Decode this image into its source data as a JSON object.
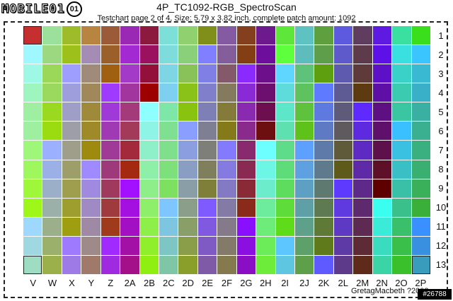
{
  "logo": {
    "text": "MOBILE01",
    "mark": "01"
  },
  "header": {
    "title": "4P_TC1092-RGB_SpectroScan",
    "subtitle": "Testchart page 2 of 4, Size: 5.79 x 3.82 inch, complete patch amount: 1092"
  },
  "columns": [
    "V",
    "W",
    "X",
    "Y",
    "Z",
    "2A",
    "2B",
    "2C",
    "2D",
    "2E",
    "2F",
    "2G",
    "2H",
    "2I",
    "2J",
    "2K",
    "2L",
    "2M",
    "2N",
    "2O",
    "2P"
  ],
  "rows": [
    "1",
    "2",
    "3",
    "4",
    "5",
    "6",
    "7",
    "8",
    "9",
    "10",
    "11",
    "12",
    "13"
  ],
  "marked_patches": [
    "V1",
    "V13",
    "2P13"
  ],
  "patches": [
    [
      "#c62f2f",
      "#9be09b",
      "#9ebc2a",
      "#b7853f",
      "#9b5b38",
      "#9a2ab5",
      "#8c1a3e",
      "#7de0d8",
      "#8fd06f",
      "#7f8f1a",
      "#845ba2",
      "#843f1f",
      "#6d1a8f",
      "#5ee63a",
      "#5ec2c2",
      "#5e9f3e",
      "#5e5adf",
      "#5e3d5f",
      "#5e1ae0",
      "#3ae0a0",
      "#3ade1a"
    ],
    [
      "#9ff7ff",
      "#9bd87f",
      "#9ec01a",
      "#a58cb5",
      "#9b5f2a",
      "#a329d2",
      "#9c1060",
      "#7edcdc",
      "#8ad07a",
      "#7f7fff",
      "#845e9a",
      "#843e14",
      "#6d0f9c",
      "#5eff3c",
      "#5ebcbc",
      "#5e9e4a",
      "#5e5acc",
      "#5e3b4a",
      "#5e10e8",
      "#3adfe0",
      "#3ac5ff"
    ],
    [
      "#9ff7e6",
      "#9bd85a",
      "#9e9eff",
      "#a08a7a",
      "#a06010",
      "#a33ac8",
      "#92103a",
      "#7ed6e4",
      "#8ac25a",
      "#7f7fe6",
      "#845a6a",
      "#8a2aff",
      "#6d0f8a",
      "#5ed6ff",
      "#5ec27a",
      "#5e9f10",
      "#5e5ab0",
      "#5e3a3a",
      "#5e10c6",
      "#3ad2c8",
      "#3ab9d2"
    ],
    [
      "#9ff5c0",
      "#9bd85e",
      "#9e9edc",
      "#a0885a",
      "#9f3aff",
      "#a3369e",
      "#9c0000",
      "#7ed0f0",
      "#8ac21a",
      "#7f7fcc",
      "#847a5e",
      "#8a2ad6",
      "#6d0f6e",
      "#5edcdc",
      "#5ec25e",
      "#5e7aff",
      "#5e5a94",
      "#5e3a10",
      "#5e10a6",
      "#3acbb0",
      "#3ab0c8"
    ],
    [
      "#9fefa2",
      "#9bd820",
      "#9e9ec6",
      "#9f8a3a",
      "#9f3ad8",
      "#a33a7a",
      "#8effff",
      "#7ee6a6",
      "#8ac210",
      "#7f7fb8",
      "#847a3a",
      "#8a2ab0",
      "#6d0f4e",
      "#5ee6c8",
      "#5ec23e",
      "#5e7ae0",
      "#5e5a7a",
      "#5e2aff",
      "#5e1082",
      "#3ac6a0",
      "#3ab0a2"
    ],
    [
      "#9fefa0",
      "#9bdc10",
      "#9e9ea8",
      "#9f8a2a",
      "#9f3ab4",
      "#a33a5a",
      "#8ef5e6",
      "#7ee090",
      "#8a9eff",
      "#7f7f94",
      "#847a1a",
      "#8a2a8c",
      "#6d0f10",
      "#5ee0b0",
      "#5ec21a",
      "#5e7ac4",
      "#5e5a5e",
      "#5e2ae0",
      "#5e106a",
      "#3ac0ff",
      "#3ab090"
    ],
    [
      "#9ff77a",
      "#9bb0ff",
      "#9e9e8a",
      "#9f8a10",
      "#9f3a96",
      "#a32a3a",
      "#8ef0c8",
      "#7ee08a",
      "#8a9ee0",
      "#7f7f7a",
      "#847aff",
      "#8a2a6e",
      "#6dffff",
      "#5edc8a",
      "#5ea0ff",
      "#5e7aa8",
      "#5e5a3a",
      "#5e2ac4",
      "#5e104a",
      "#3ac0e0",
      "#3ab080"
    ],
    [
      "#9ff75e",
      "#9bb0e6",
      "#9e9e6a",
      "#9f8aff",
      "#9f3a7a",
      "#a32a10",
      "#8eefa8",
      "#7ee07a",
      "#8a9ec4",
      "#7f7f5e",
      "#847ae0",
      "#8a2a52",
      "#6df5e6",
      "#5edc7a",
      "#5ea0e0",
      "#5e7a8c",
      "#5e5a1a",
      "#5e2aa6",
      "#5e1028",
      "#3ac0c4",
      "#3ab070"
    ],
    [
      "#9ff73a",
      "#9bb0c8",
      "#9e9e4e",
      "#9f8ae0",
      "#9f3a5e",
      "#a310ff",
      "#8eef8a",
      "#7ee060",
      "#8a9ea8",
      "#7f7f3a",
      "#847ac4",
      "#8a2a36",
      "#6deccc",
      "#5edc5e",
      "#5ea0c4",
      "#5e7a70",
      "#5e3aff",
      "#5e2a8a",
      "#5e0000",
      "#3ac0a6",
      "#3ab05a"
    ],
    [
      "#9ff71a",
      "#9bb0a8",
      "#9e9e2e",
      "#9f8ac4",
      "#9f3a3e",
      "#a310e0",
      "#8eef6a",
      "#7ec6ff",
      "#8a9e8a",
      "#7f5aff",
      "#847aa6",
      "#8a2a1a",
      "#6dec9e",
      "#5edc3a",
      "#5ea0a6",
      "#5e7a52",
      "#5e3ae0",
      "#5e2a6e",
      "#3afff0",
      "#3ac08a",
      "#3ab03a"
    ],
    [
      "#9fd8ff",
      "#9bb08a",
      "#9e9e10",
      "#9f8aa6",
      "#9f3a1a",
      "#a310c4",
      "#8eef4a",
      "#7ec6e0",
      "#8a9e6a",
      "#7f5ae0",
      "#847a8a",
      "#8a0fff",
      "#6dec7a",
      "#5edc1a",
      "#5ea08a",
      "#5e7a36",
      "#5e3ac4",
      "#5e2a52",
      "#3aecd8",
      "#3ac06a",
      "#3a90ff"
    ],
    [
      "#9fd8e0",
      "#9bb06a",
      "#9e7aff",
      "#9f8a8a",
      "#a02aff",
      "#a310a6",
      "#8eef2a",
      "#7ec6c4",
      "#8a9e4a",
      "#7f5ac4",
      "#847a6a",
      "#8a0fe0",
      "#6dec5a",
      "#5ec6ff",
      "#5ea06a",
      "#5e7a1a",
      "#5e3aa6",
      "#5e2a36",
      "#3adcc0",
      "#3ac04a",
      "#3a90e0"
    ],
    [
      "#9fdcc4",
      "#9bb04a",
      "#9e7ae6",
      "#9f7a6a",
      "#a02ae0",
      "#a3108a",
      "#8eef10",
      "#7ec6a6",
      "#8a9e2a",
      "#7f5aa6",
      "#847a4e",
      "#8a0fc4",
      "#6dec3a",
      "#5ec6e0",
      "#5ea04a",
      "#5e5aff",
      "#5e3a8a",
      "#5e2a1a",
      "#3ad4a6",
      "#3ac02a",
      "#3a9cbc"
    ]
  ],
  "credit": "GretagMacbeth ?2002",
  "badge": "#26788"
}
